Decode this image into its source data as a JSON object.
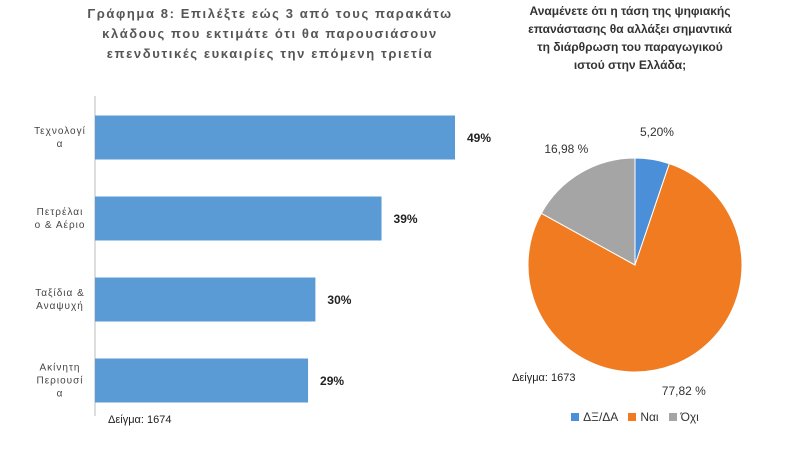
{
  "chart_data": [
    {
      "type": "bar",
      "title": "Γράφημα 8: Επιλέξτε εώς 3 από τους παρακάτω κλάδους που εκτιμάτε ότι θα παρουσιάσουν επενδυτικές ευκαιρίες την επόμενη τριετία",
      "categories": [
        "Τεχνολογία",
        "Πετρέλαιο & Αέριο",
        "Ταξίδια & Αναψυχή",
        "Ακίνητη Περιουσία"
      ],
      "values": [
        49,
        39,
        30,
        29
      ],
      "value_labels": [
        "49%",
        "39%",
        "30%",
        "29%"
      ],
      "color": "#5b9bd5",
      "annotation": "Δείγμα: 1674"
    },
    {
      "type": "pie",
      "title": "Αναμένετε ότι η τάση της ψηφιακής επανάστασης θα αλλάξει σημαντικά τη διάρθρωση του παραγωγικού ιστού στην Ελλάδα;",
      "categories": [
        "ΔΞ/ΔΑ",
        "Ναι",
        "Όχι"
      ],
      "values": [
        5.2,
        77.82,
        16.98
      ],
      "value_labels": [
        "5,20%",
        "77,82 %",
        "16,98 %"
      ],
      "colors": [
        "#4a8fd8",
        "#f07b21",
        "#a5a5a5"
      ],
      "annotation": "Δείγμα: 1673",
      "legend": "bottom"
    }
  ]
}
